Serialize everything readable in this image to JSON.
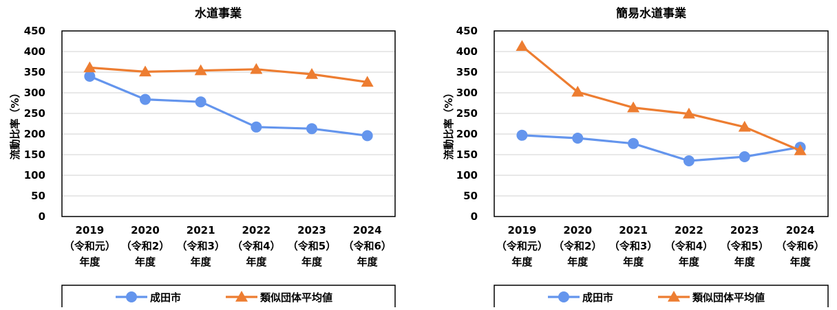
{
  "chart_data": [
    {
      "type": "line",
      "title": "水道事業",
      "ylabel": "流動比率（%）",
      "ylim": [
        0,
        450
      ],
      "yticks": [
        0,
        50,
        100,
        150,
        200,
        250,
        300,
        350,
        400,
        450
      ],
      "grid": true,
      "legend_position": "bottom",
      "categories": [
        [
          "2019",
          "（令和元）",
          "年度"
        ],
        [
          "2020",
          "（令和2）",
          "年度"
        ],
        [
          "2021",
          "（令和3）",
          "年度"
        ],
        [
          "2022",
          "（令和4）",
          "年度"
        ],
        [
          "2023",
          "（令和5）",
          "年度"
        ],
        [
          "2024",
          "（令和6）",
          "年度"
        ]
      ],
      "series": [
        {
          "name": "成田市",
          "color": "#6495ED",
          "marker": "circle",
          "values": [
            340,
            284,
            278,
            217,
            213,
            196
          ]
        },
        {
          "name": "類似団体平均値",
          "color": "#ED7D31",
          "marker": "triangle",
          "values": [
            361,
            351,
            354,
            357,
            345,
            326
          ]
        }
      ]
    },
    {
      "type": "line",
      "title": "簡易水道事業",
      "ylabel": "流動比率（%）",
      "ylim": [
        0,
        450
      ],
      "yticks": [
        0,
        50,
        100,
        150,
        200,
        250,
        300,
        350,
        400,
        450
      ],
      "grid": true,
      "legend_position": "bottom",
      "categories": [
        [
          "2019",
          "（令和元）",
          "年度"
        ],
        [
          "2020",
          "（令和2）",
          "年度"
        ],
        [
          "2021",
          "（令和3）",
          "年度"
        ],
        [
          "2022",
          "（令和4）",
          "年度"
        ],
        [
          "2023",
          "（令和5）",
          "年度"
        ],
        [
          "2024",
          "（令和6）",
          "年度"
        ]
      ],
      "series": [
        {
          "name": "成田市",
          "color": "#6495ED",
          "marker": "circle",
          "values": [
            197,
            190,
            177,
            135,
            145,
            168
          ]
        },
        {
          "name": "類似団体平均値",
          "color": "#ED7D31",
          "marker": "triangle",
          "values": [
            413,
            302,
            264,
            249,
            217,
            160
          ]
        }
      ]
    }
  ]
}
